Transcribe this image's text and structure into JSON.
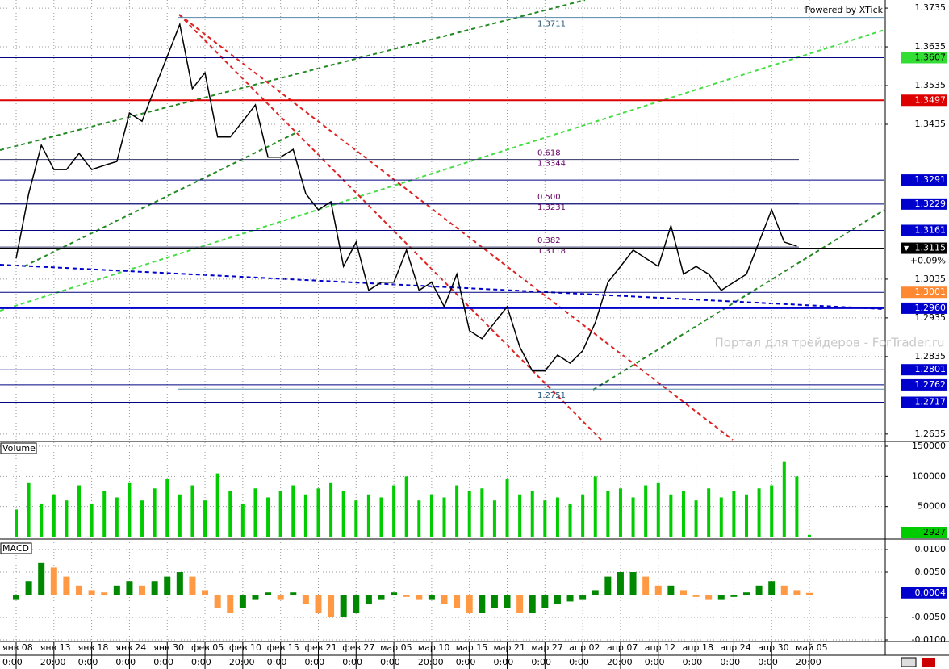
{
  "chart_data": [
    {
      "type": "line",
      "color": "#000000",
      "credit": "Powered by XTick",
      "watermark": "Портал для трейдеров - ForTrader.ru",
      "categories": [
        "янв 08",
        null,
        null,
        "янв 13",
        null,
        null,
        "янв 18",
        null,
        null,
        "янв 24",
        null,
        null,
        "янв 30",
        null,
        null,
        "фев 05",
        null,
        null,
        "фев 10",
        null,
        null,
        "фев 15",
        null,
        null,
        "фев 21",
        null,
        null,
        "фев 27",
        null,
        null,
        "мар 05",
        null,
        null,
        "мар 10",
        null,
        null,
        "мар 15",
        null,
        null,
        "мар 21",
        null,
        null,
        "мар 27",
        null,
        null,
        "апр 02",
        null,
        null,
        "апр 07",
        null,
        null,
        "апр 12",
        null,
        null,
        "апр 18",
        null,
        null,
        "апр 24",
        null,
        null,
        "апр 30",
        null,
        null,
        "май 05"
      ],
      "times": [
        "0:00",
        null,
        null,
        "20:00",
        null,
        null,
        "0:00",
        null,
        null,
        "0:00",
        null,
        null,
        "0:00",
        null,
        null,
        "0:00",
        null,
        null,
        "20:00",
        null,
        null,
        "0:00",
        null,
        null,
        "0:00",
        null,
        null,
        "0:00",
        null,
        null,
        "0:00",
        null,
        null,
        "20:00",
        null,
        null,
        "0:00",
        null,
        null,
        "0:00",
        null,
        null,
        "0:00",
        null,
        null,
        "0:00",
        null,
        null,
        "20:00",
        null,
        null,
        "0:00",
        null,
        null,
        "0:00",
        null,
        null,
        "0:00",
        null,
        null,
        "0:00",
        null,
        null,
        "20:00"
      ],
      "values": [
        1.3089,
        1.3256,
        1.3381,
        1.3318,
        1.3318,
        1.336,
        1.3318,
        1.3329,
        1.3339,
        1.3464,
        1.3443,
        1.3527,
        1.361,
        1.3693,
        1.3527,
        1.3568,
        1.3402,
        1.3402,
        1.3443,
        1.3485,
        1.335,
        1.335,
        1.337,
        1.3256,
        1.3214,
        1.3235,
        1.3068,
        1.3131,
        1.3006,
        1.3027,
        1.3027,
        1.311,
        1.3006,
        1.3027,
        1.2964,
        1.3048,
        1.2902,
        1.2881,
        1.2923,
        1.2964,
        1.286,
        1.2798,
        1.2798,
        1.2839,
        1.2818,
        1.285,
        1.2923,
        1.3027,
        1.3068,
        1.311,
        1.3089,
        1.3068,
        1.3173,
        1.3048,
        1.3068,
        1.3048,
        1.3006,
        1.3027,
        1.3048,
        1.3131,
        1.3214,
        1.3131,
        1.312,
        null
      ],
      "ylim": [
        1.2618,
        1.3756
      ],
      "yticks": [
        1.3735,
        1.3635,
        1.3535,
        1.3435,
        1.3035,
        1.2935,
        1.2835,
        1.2635
      ],
      "levels": [
        {
          "price": 1.3607,
          "color": "#33dd33",
          "text_color": "#000000"
        },
        {
          "price": 1.3497,
          "color": "#dd0000",
          "text_color": "#ffffff"
        },
        {
          "price": 1.3291,
          "color": "#0000cc",
          "text_color": "#ffffff"
        },
        {
          "price": 1.3229,
          "color": "#0000cc",
          "text_color": "#ffffff"
        },
        {
          "price": 1.3161,
          "color": "#0000cc",
          "text_color": "#ffffff"
        },
        {
          "price": 1.3001,
          "color": "#ff8833",
          "text_color": "#ffffff"
        },
        {
          "price": {
            "value": 1.296,
            "label": "1.2960"
          },
          "color": "#0000cc",
          "text_color": "#ffffff"
        },
        {
          "price": 1.2801,
          "color": "#0000cc",
          "text_color": "#ffffff"
        },
        {
          "price": 1.2762,
          "color": "#0000cc",
          "text_color": "#ffffff"
        },
        {
          "price": 1.2717,
          "color": "#0000cc",
          "text_color": "#ffffff"
        }
      ],
      "fib": [
        {
          "ratio": 0.618,
          "price": 1.3344
        },
        {
          "ratio": {
            "value": 0.5,
            "label": "0.500"
          },
          "price": 1.3231
        },
        {
          "ratio": 0.382,
          "price": 1.3118
        }
      ],
      "marks": [
        1.3711,
        1.2751
      ],
      "last": 1.3115,
      "change": {
        "value": 0.09,
        "label": "+0.09%"
      }
    },
    {
      "type": "bar",
      "title": "Volume",
      "color": "#00cc00",
      "values": [
        45000,
        90000,
        55000,
        70000,
        60000,
        85000,
        55000,
        75000,
        65000,
        90000,
        60000,
        80000,
        95000,
        70000,
        85000,
        60000,
        105000,
        75000,
        55000,
        80000,
        65000,
        75000,
        85000,
        70000,
        80000,
        90000,
        75000,
        60000,
        70000,
        65000,
        85000,
        100000,
        60000,
        70000,
        65000,
        85000,
        75000,
        80000,
        60000,
        95000,
        70000,
        75000,
        60000,
        65000,
        55000,
        70000,
        100000,
        75000,
        80000,
        65000,
        85000,
        90000,
        70000,
        75000,
        60000,
        80000,
        65000,
        75000,
        70000,
        80000,
        85000,
        125000,
        100000,
        2927
      ],
      "ylim": [
        0,
        156700
      ],
      "yticks": [
        150000,
        100000,
        50000
      ]
    },
    {
      "type": "bar",
      "title": "MACD",
      "color_up": "#008800",
      "color_down": "#ff9944",
      "values": [
        -0.001,
        0.003,
        0.007,
        0.006,
        0.004,
        0.002,
        0.001,
        0.0005,
        0.002,
        0.003,
        0.002,
        0.003,
        0.004,
        0.005,
        0.004,
        0.001,
        -0.003,
        -0.004,
        -0.003,
        -0.001,
        0.0005,
        -0.001,
        0.0005,
        -0.002,
        -0.004,
        -0.005,
        -0.005,
        -0.004,
        -0.002,
        -0.001,
        0.0005,
        -0.0005,
        -0.001,
        -0.001,
        -0.002,
        -0.003,
        -0.004,
        -0.004,
        -0.003,
        -0.003,
        -0.004,
        -0.004,
        -0.003,
        -0.002,
        -0.0015,
        -0.001,
        0.001,
        0.004,
        0.005,
        0.005,
        0.004,
        0.002,
        0.002,
        0.001,
        -0.0005,
        -0.001,
        -0.001,
        -0.0005,
        0.0005,
        0.002,
        0.003,
        0.002,
        0.001,
        0.0004
      ],
      "ylim": [
        -0.01214,
        0.01161
      ],
      "yticks": [
        {
          "value": 0.01,
          "label": "0.0100"
        },
        {
          "value": 0.005,
          "label": "0.0050"
        },
        {
          "value": -0.005,
          "label": "-0.0050"
        },
        {
          "value": -0.01,
          "label": "-0.0100"
        }
      ]
    }
  ]
}
